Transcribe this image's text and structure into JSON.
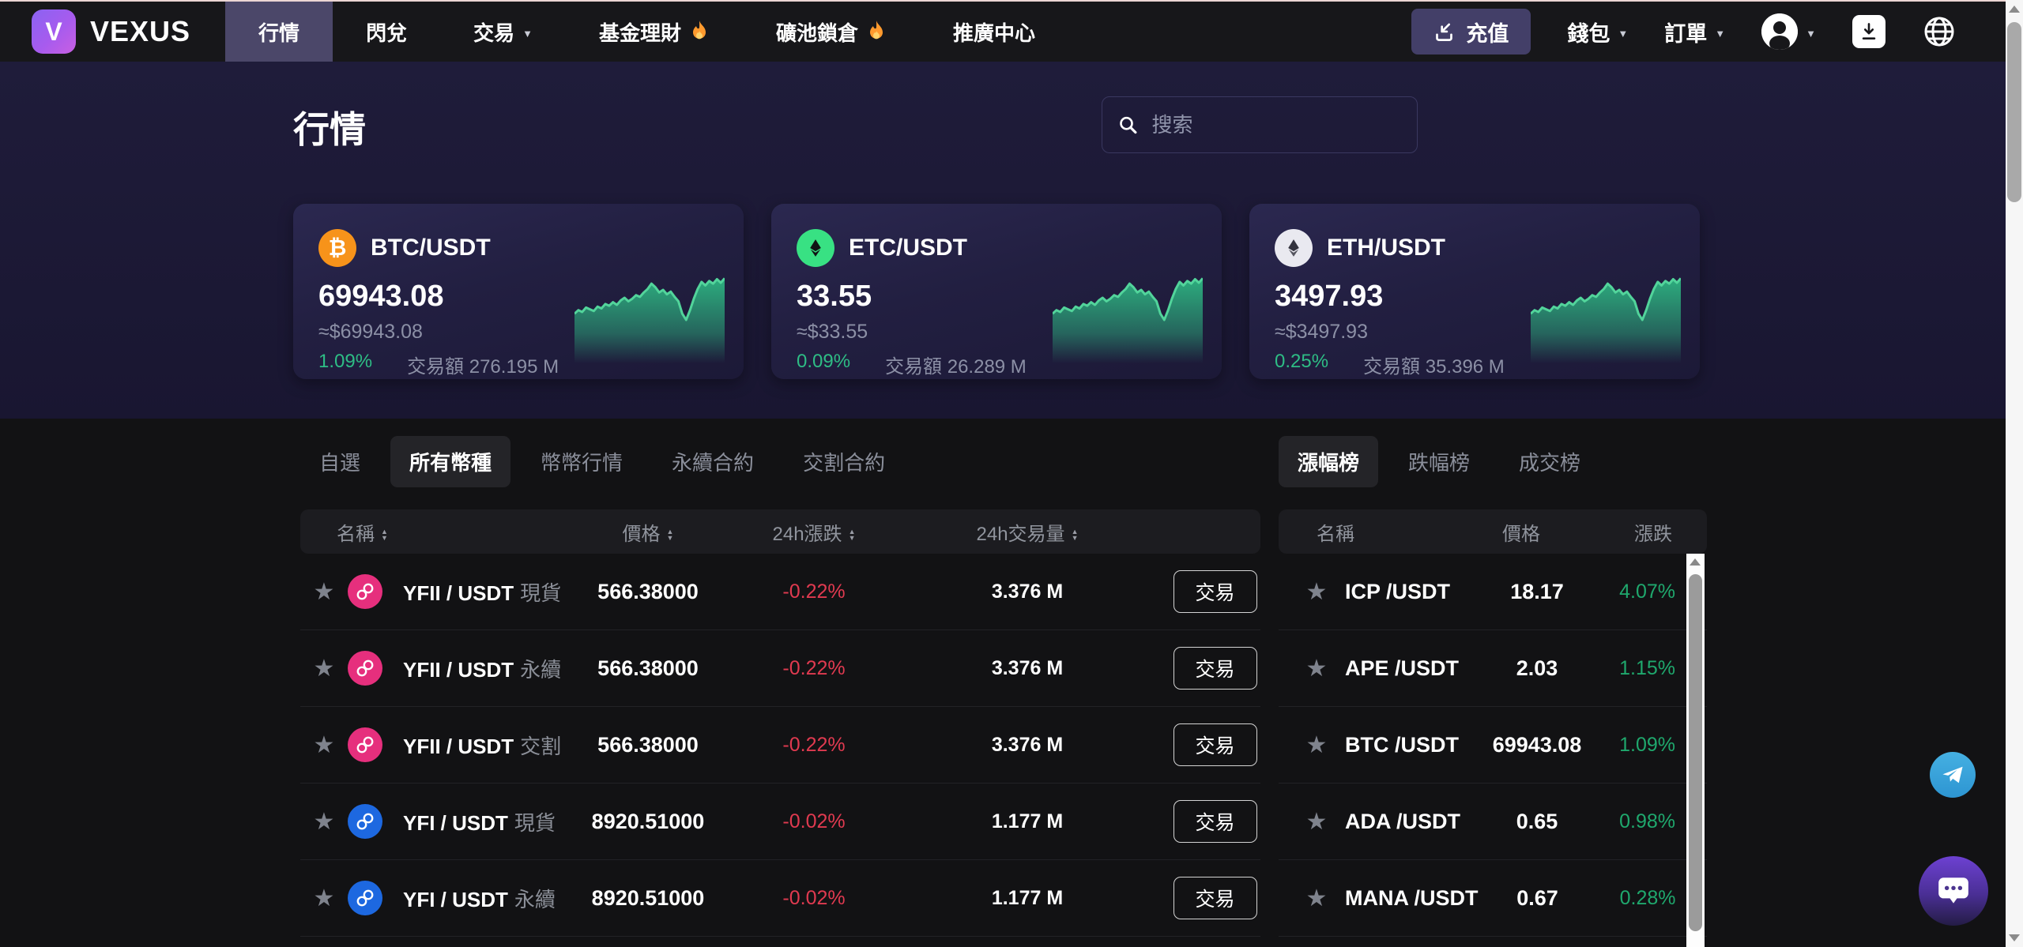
{
  "nav": {
    "brand": "VEXUS",
    "items": [
      {
        "label": "行情"
      },
      {
        "label": "閃兌"
      },
      {
        "label": "交易"
      },
      {
        "label": "基金理財"
      },
      {
        "label": "礦池鎖倉"
      },
      {
        "label": "推廣中心"
      }
    ],
    "deposit": "充值",
    "wallet": "錢包",
    "orders": "訂單"
  },
  "page": {
    "title": "行情",
    "search_placeholder": "搜索"
  },
  "cards": [
    {
      "pair": "BTC/USDT",
      "price": "69943.08",
      "approx": "≈$69943.08",
      "change": "1.09%",
      "volume_label": "交易額",
      "volume": "276.195 M"
    },
    {
      "pair": "ETC/USDT",
      "price": "33.55",
      "approx": "≈$33.55",
      "change": "0.09%",
      "volume_label": "交易額",
      "volume": "26.289 M"
    },
    {
      "pair": "ETH/USDT",
      "price": "3497.93",
      "approx": "≈$3497.93",
      "change": "0.25%",
      "volume_label": "交易額",
      "volume": "35.396 M"
    }
  ],
  "market_tabs": {
    "items": [
      {
        "label": "自選"
      },
      {
        "label": "所有幣種"
      },
      {
        "label": "幣幣行情"
      },
      {
        "label": "永續合約"
      },
      {
        "label": "交割合約"
      }
    ]
  },
  "rank_tabs": {
    "items": [
      {
        "label": "漲幅榜"
      },
      {
        "label": "跌幅榜"
      },
      {
        "label": "成交榜"
      }
    ]
  },
  "market_table": {
    "headers": {
      "name": "名稱",
      "price": "價格",
      "change": "24h漲跌",
      "volume": "24h交易量"
    },
    "action_label": "交易",
    "rows": [
      {
        "pair": "YFII / USDT",
        "type": "現貨",
        "price": "566.38000",
        "change": "-0.22%",
        "volume": "3.376 M",
        "icon": "yfii"
      },
      {
        "pair": "YFII / USDT",
        "type": "永續",
        "price": "566.38000",
        "change": "-0.22%",
        "volume": "3.376 M",
        "icon": "yfii"
      },
      {
        "pair": "YFII / USDT",
        "type": "交割",
        "price": "566.38000",
        "change": "-0.22%",
        "volume": "3.376 M",
        "icon": "yfii"
      },
      {
        "pair": "YFI / USDT",
        "type": "現貨",
        "price": "8920.51000",
        "change": "-0.02%",
        "volume": "1.177 M",
        "icon": "yfi"
      },
      {
        "pair": "YFI / USDT",
        "type": "永續",
        "price": "8920.51000",
        "change": "-0.02%",
        "volume": "1.177 M",
        "icon": "yfi"
      }
    ]
  },
  "rank_table": {
    "headers": {
      "name": "名稱",
      "price": "價格",
      "change": "漲跌"
    },
    "rows": [
      {
        "pair": "ICP /USDT",
        "price": "18.17",
        "change": "4.07%"
      },
      {
        "pair": "APE /USDT",
        "price": "2.03",
        "change": "1.15%"
      },
      {
        "pair": "BTC /USDT",
        "price": "69943.08",
        "change": "1.09%"
      },
      {
        "pair": "ADA /USDT",
        "price": "0.65",
        "change": "0.98%"
      },
      {
        "pair": "MANA /USDT",
        "price": "0.67",
        "change": "0.28%"
      }
    ]
  },
  "sparkline": [
    40,
    44,
    42,
    47,
    45,
    43,
    48,
    46,
    51,
    49,
    53,
    50,
    55,
    58,
    54,
    57,
    61,
    59,
    64,
    68,
    74,
    70,
    64,
    67,
    62,
    65,
    59,
    54,
    40,
    33,
    44,
    57,
    68,
    76,
    72,
    77,
    74,
    79,
    75,
    80
  ],
  "colors": {
    "up_green": "#2ebd85",
    "rank_green": "#1fa86d",
    "down_red": "#e03a50",
    "active_nav": "#4b4769",
    "btc_orange": "#f7931a",
    "etc_green": "#38e183",
    "yfii_pink": "#e62f7d",
    "yfi_blue": "#1d68e0",
    "telegram_blue": "#35a6de",
    "chat_purple": "#6d41d2"
  }
}
